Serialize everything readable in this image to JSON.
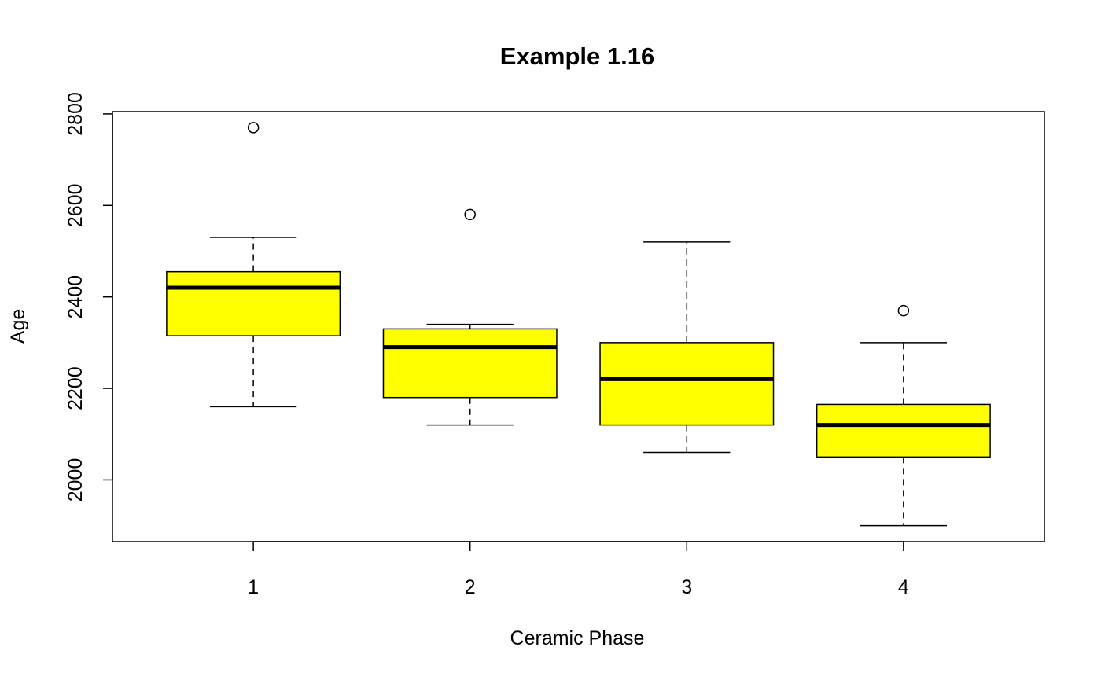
{
  "chart_data": {
    "type": "boxplot",
    "title": "Example 1.16",
    "xlabel": "Ceramic Phase",
    "ylabel": "Age",
    "categories": [
      "1",
      "2",
      "3",
      "4"
    ],
    "ylim": [
      1865,
      2805
    ],
    "yticks": [
      2000,
      2200,
      2400,
      2600,
      2800
    ],
    "box_color": "#ffff00",
    "grid": false,
    "legend": "none",
    "boxes": [
      {
        "category": "1",
        "whisker_low": 2160,
        "q1": 2315,
        "median": 2420,
        "q3": 2455,
        "whisker_high": 2530,
        "outliers": [
          2770
        ]
      },
      {
        "category": "2",
        "whisker_low": 2120,
        "q1": 2180,
        "median": 2290,
        "q3": 2330,
        "whisker_high": 2340,
        "outliers": [
          2580
        ]
      },
      {
        "category": "3",
        "whisker_low": 2060,
        "q1": 2120,
        "median": 2220,
        "q3": 2300,
        "whisker_high": 2520,
        "outliers": []
      },
      {
        "category": "4",
        "whisker_low": 1900,
        "q1": 2050,
        "median": 2120,
        "q3": 2165,
        "whisker_high": 2300,
        "outliers": [
          2370
        ]
      }
    ]
  }
}
